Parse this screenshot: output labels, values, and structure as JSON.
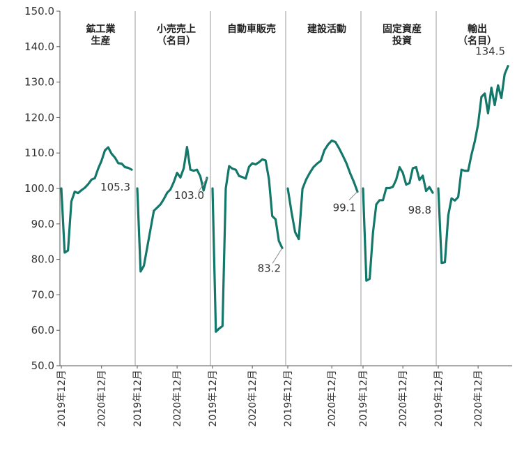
{
  "chart_data": {
    "type": "line",
    "ylim": [
      50,
      150
    ],
    "yticks": [
      "150.0",
      "140.0",
      "130.0",
      "120.0",
      "110.0",
      "100.0",
      "90.0",
      "80.0",
      "70.0",
      "60.0",
      "50.0"
    ],
    "xtick_labels": [
      "2019年12月",
      "2020年12月"
    ],
    "line_color": "#13776a",
    "grid": false,
    "panels": [
      {
        "title_lines": [
          "鉱工業",
          "生産"
        ],
        "end_label": "105.3",
        "values": [
          100.0,
          81.9,
          82.5,
          96.3,
          99.1,
          98.7,
          99.5,
          100.2,
          101.2,
          102.5,
          102.9,
          105.6,
          107.8,
          110.7,
          111.6,
          109.8,
          108.7,
          107.1,
          107.0,
          106.0,
          105.8,
          105.3
        ]
      },
      {
        "title_lines": [
          "小売売上",
          "（名目）"
        ],
        "end_label": "103.0",
        "values": [
          100.0,
          76.6,
          78.2,
          83.4,
          88.5,
          93.7,
          94.6,
          95.5,
          97.0,
          98.8,
          99.7,
          101.8,
          104.4,
          103.1,
          105.7,
          111.7,
          105.3,
          105.0,
          105.3,
          103.4,
          99.4,
          103.0
        ]
      },
      {
        "title_lines": [
          "自動車販売"
        ],
        "end_label": "83.2",
        "values": [
          100.0,
          59.6,
          60.5,
          61.2,
          100.0,
          106.3,
          105.6,
          105.3,
          103.5,
          103.2,
          102.8,
          106.1,
          107.1,
          106.8,
          107.4,
          108.2,
          107.9,
          102.6,
          92.2,
          91.3,
          85.2,
          83.2
        ]
      },
      {
        "title_lines": [
          "建設活動"
        ],
        "end_label": "99.1",
        "values": [
          100.0,
          93.4,
          87.7,
          85.7,
          99.9,
          102.5,
          104.4,
          106.0,
          107.0,
          107.8,
          110.8,
          112.4,
          113.5,
          113.1,
          111.3,
          109.3,
          107.1,
          104.3,
          101.9,
          99.1
        ]
      },
      {
        "title_lines": [
          "固定資産",
          "投資"
        ],
        "end_label": "98.8",
        "values": [
          100.0,
          74.0,
          74.5,
          87.6,
          95.5,
          96.7,
          96.7,
          100.1,
          100.1,
          100.5,
          102.5,
          106.0,
          104.4,
          101.1,
          101.5,
          105.7,
          106.0,
          102.4,
          103.6,
          99.3,
          100.4,
          98.8
        ]
      },
      {
        "title_lines": [
          "輸出",
          "（名目）"
        ],
        "end_label": "134.5",
        "values": [
          100.0,
          79.0,
          79.2,
          92.4,
          97.2,
          96.6,
          97.6,
          105.3,
          105.0,
          105.0,
          109.5,
          113.3,
          118.1,
          125.8,
          126.8,
          121.2,
          128.4,
          123.5,
          129.1,
          125.5,
          132.2,
          134.5
        ]
      }
    ]
  }
}
